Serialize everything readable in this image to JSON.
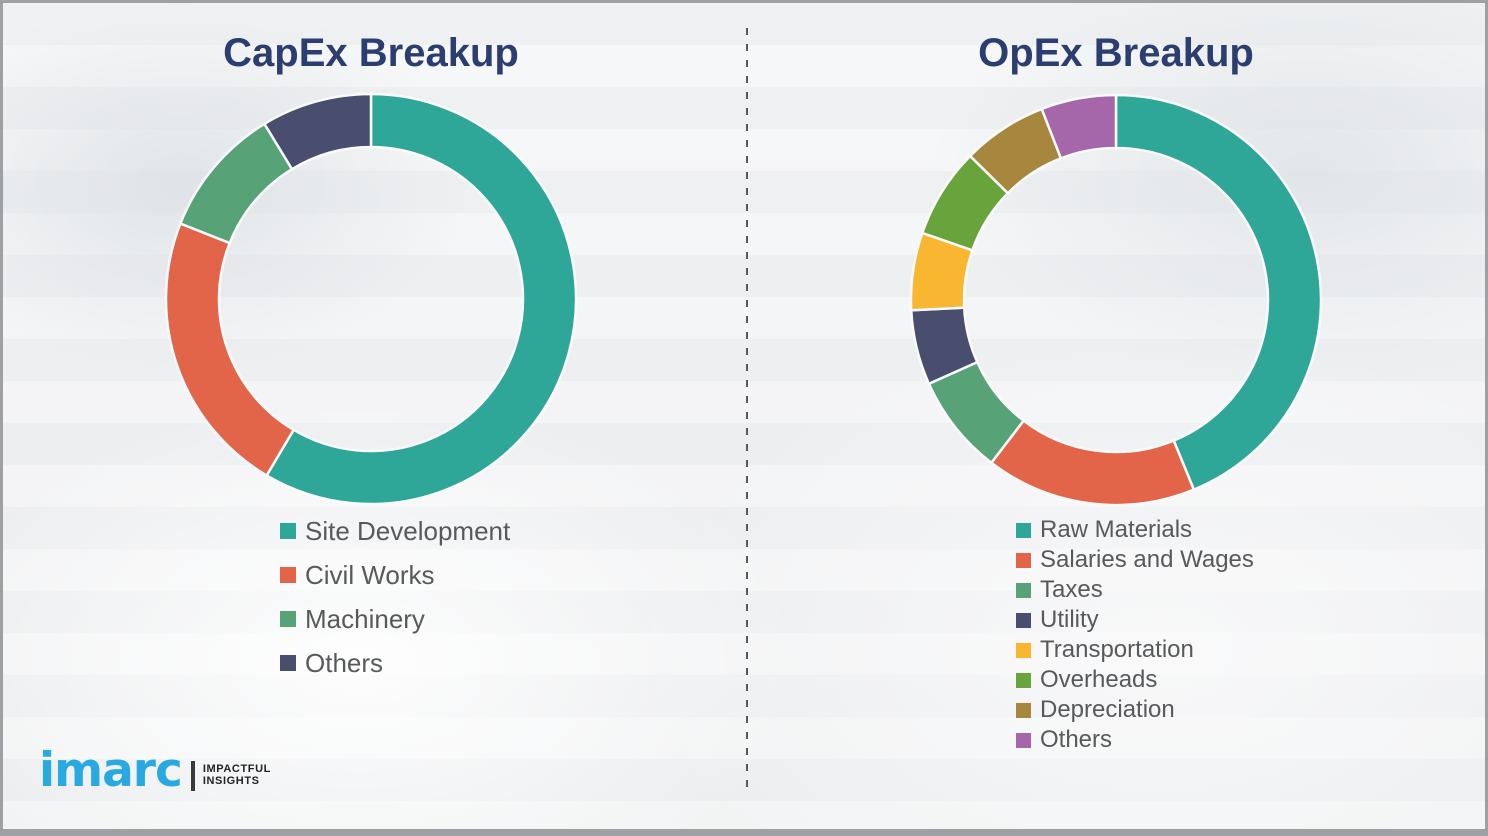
{
  "chart_data": [
    {
      "type": "pie",
      "subtype": "donut",
      "title": "CapEx Breakup",
      "categories": [
        "Site Development",
        "Civil Works",
        "Machinery",
        "Others"
      ],
      "values": [
        58.5,
        22.5,
        10.3,
        8.7
      ],
      "values_unit": "percent (estimated from arc angles)",
      "colors": [
        "#2ea698",
        "#e2654a",
        "#58a277",
        "#494e6e"
      ],
      "legend_position": "below-left",
      "start_angle_deg": 0,
      "direction": "clockwise"
    },
    {
      "type": "pie",
      "subtype": "donut",
      "title": "OpEx Breakup",
      "categories": [
        "Raw Materials",
        "Salaries and Wages",
        "Taxes",
        "Utility",
        "Transportation",
        "Overheads",
        "Depreciation",
        "Others"
      ],
      "values": [
        43.8,
        16.6,
        7.9,
        5.9,
        6.1,
        7.1,
        6.7,
        5.9
      ],
      "values_unit": "percent (estimated from arc angles)",
      "colors": [
        "#2ea698",
        "#e2654a",
        "#58a277",
        "#494e6e",
        "#f8b631",
        "#68a33c",
        "#a7873d",
        "#a567a9"
      ],
      "legend_position": "below-left",
      "start_angle_deg": 0,
      "direction": "clockwise"
    }
  ],
  "logo": {
    "brand": "imarc",
    "tagline": [
      "IMPACTFUL",
      "INSIGHTS"
    ],
    "brand_color": "#29a9e1"
  },
  "colors": {
    "title_text": "#2b3e6f",
    "legend_text": "#58595b",
    "divider": "#58595b",
    "background": "#f1f2f4",
    "segment_separator": "#fafafb"
  }
}
